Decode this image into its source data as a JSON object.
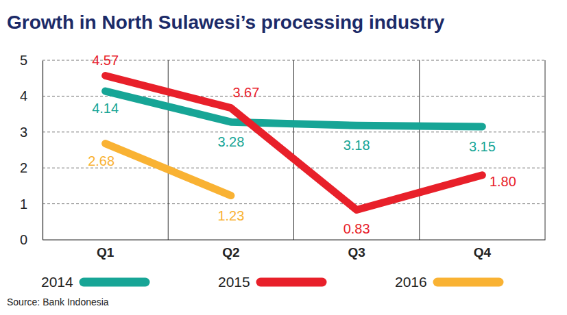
{
  "chart_data": {
    "type": "line",
    "title": "Growth in North Sulawesi’s processing industry",
    "categories": [
      "Q1",
      "Q2",
      "Q3",
      "Q4"
    ],
    "series": [
      {
        "name": "2014",
        "color": "#17a596",
        "values": [
          4.14,
          3.28,
          3.18,
          3.15
        ],
        "value_labels": [
          "4.14",
          "3.28",
          "3.18",
          "3.15"
        ]
      },
      {
        "name": "2015",
        "color": "#e8202a",
        "values": [
          4.57,
          3.67,
          0.83,
          1.8
        ],
        "value_labels": [
          "4.57",
          "3.67",
          "0.83",
          "1.80"
        ]
      },
      {
        "name": "2016",
        "color": "#f9b233",
        "values": [
          2.68,
          1.23,
          null,
          null
        ],
        "value_labels": [
          "2.68",
          "1.23",
          null,
          null
        ]
      }
    ],
    "ylim": [
      0,
      5
    ],
    "yticks": [
      0,
      1,
      2,
      3,
      4,
      5
    ],
    "grid": true,
    "data_labels": true,
    "legend": "bottom",
    "source": "Source: Bank Indonesia"
  }
}
